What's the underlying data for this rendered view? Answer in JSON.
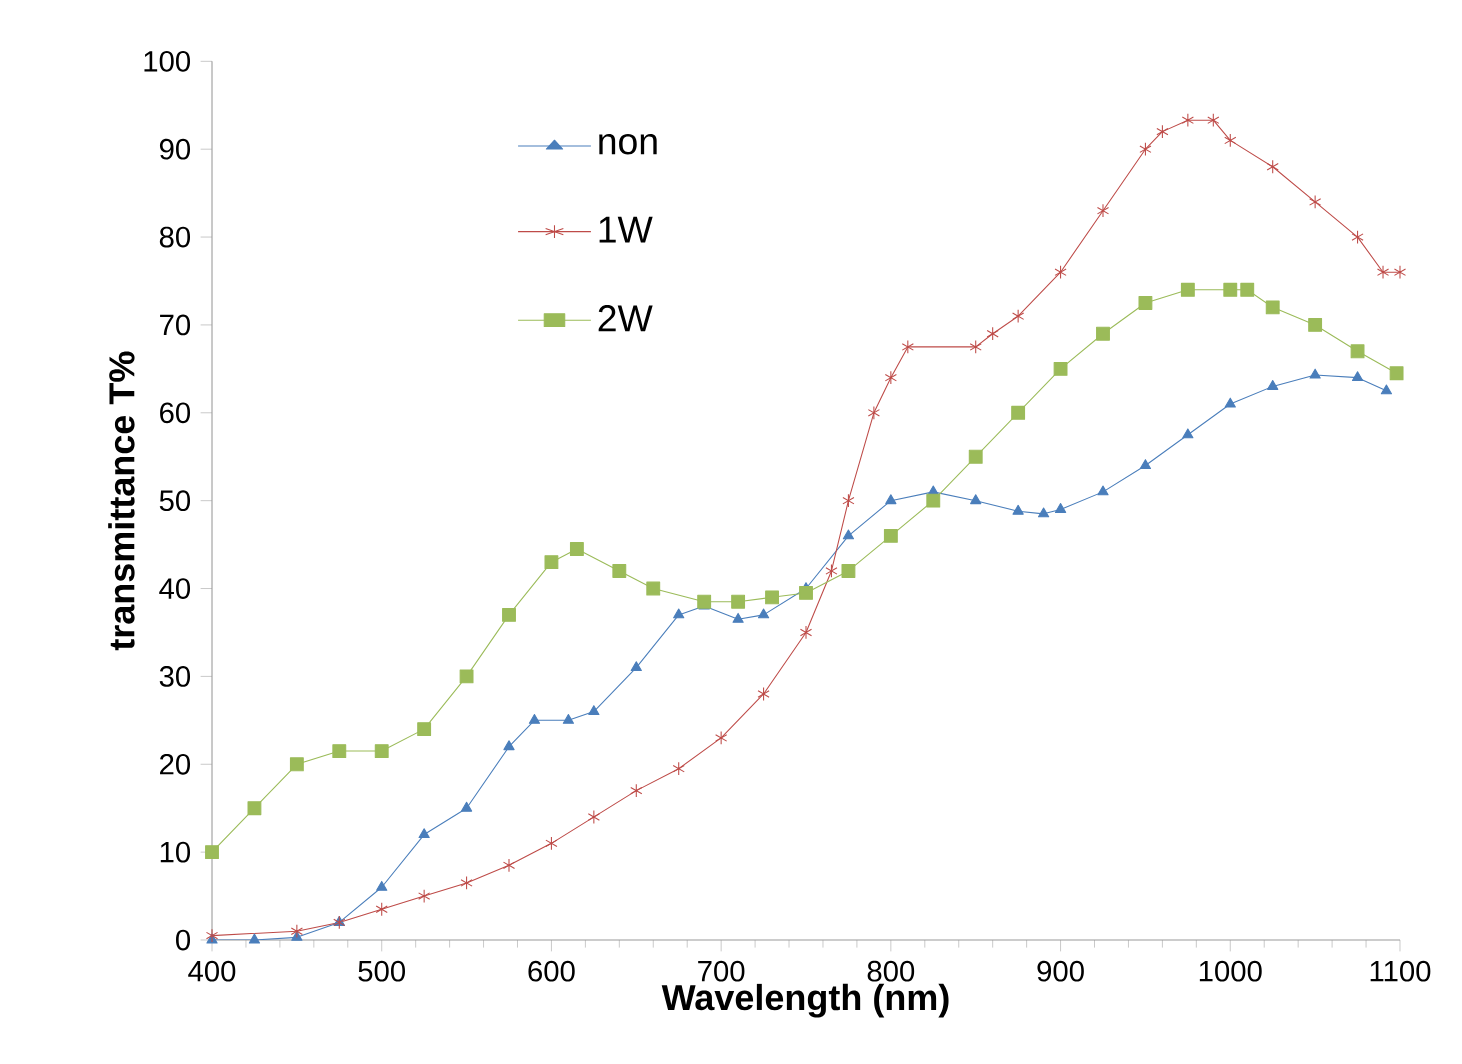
{
  "chart_data": {
    "type": "line",
    "xlabel": "Wavelength (nm)",
    "ylabel": "transmittance T%",
    "xlim": [
      400,
      1100
    ],
    "xticks": [
      400,
      500,
      600,
      700,
      800,
      900,
      1000,
      1100
    ],
    "ylim": [
      0,
      100
    ],
    "yticks": [
      0,
      10,
      20,
      30,
      40,
      50,
      60,
      70,
      80,
      90,
      100
    ],
    "grid": false,
    "legend": "top left",
    "line_style": "solid",
    "series": [
      {
        "name": "non",
        "color": "#4a7ebb",
        "marker": "triangle",
        "x": [
          400,
          425,
          450,
          475,
          500,
          525,
          550,
          575,
          590,
          610,
          625,
          650,
          675,
          690,
          710,
          725,
          750,
          775,
          800,
          825,
          850,
          875,
          890,
          900,
          925,
          950,
          975,
          1000,
          1025,
          1050,
          1075,
          1092
        ],
        "values": [
          0,
          0,
          0.3,
          2,
          6,
          12,
          15,
          22,
          25,
          25,
          26,
          31,
          37,
          38,
          36.5,
          37,
          40,
          46,
          50,
          51,
          50,
          48.8,
          48.5,
          49,
          51,
          54,
          57.5,
          61,
          63,
          64.3,
          64,
          62.5
        ]
      },
      {
        "name": "1W",
        "color": "#be4b48",
        "marker": "cross",
        "x": [
          400,
          450,
          475,
          500,
          525,
          550,
          575,
          600,
          625,
          650,
          675,
          700,
          725,
          750,
          765,
          775,
          790,
          800,
          810,
          850,
          860,
          875,
          900,
          925,
          950,
          960,
          975,
          990,
          1000,
          1025,
          1050,
          1075,
          1090,
          1100
        ],
        "values": [
          0.5,
          1,
          2,
          3.5,
          5,
          6.5,
          8.5,
          11,
          14,
          17,
          19.5,
          23,
          28,
          35,
          42,
          50,
          60,
          64,
          67.5,
          67.5,
          69,
          71,
          76,
          83,
          90,
          92,
          93.3,
          93.3,
          91,
          88,
          84,
          80,
          76,
          76
        ]
      },
      {
        "name": "2W",
        "color": "#9bbb59",
        "marker": "square",
        "x": [
          400,
          425,
          450,
          475,
          500,
          525,
          550,
          575,
          600,
          615,
          640,
          660,
          690,
          710,
          730,
          750,
          775,
          800,
          825,
          850,
          875,
          900,
          925,
          950,
          975,
          1000,
          1010,
          1025,
          1050,
          1075,
          1098
        ],
        "values": [
          10,
          15,
          20,
          21.5,
          21.5,
          24,
          30,
          37,
          43,
          44.5,
          42,
          40,
          38.5,
          38.5,
          39,
          39.5,
          42,
          46,
          50,
          55,
          60,
          65,
          69,
          72.5,
          74,
          74,
          74,
          72,
          70,
          67,
          64.5
        ]
      }
    ]
  }
}
